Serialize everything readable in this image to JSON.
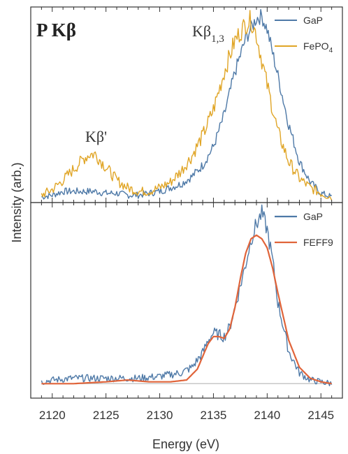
{
  "chart_data": [
    {
      "type": "line",
      "panel": "top",
      "title": "P Kβ",
      "annotations": [
        {
          "label": "Kβ'",
          "x": 2124.0
        },
        {
          "label": "Kβ",
          "subscript": "1,3",
          "x": 2137.5
        }
      ],
      "xlim": [
        2118,
        2147
      ],
      "ylim": [
        0,
        1.05
      ],
      "grid": false,
      "legend_position": "top-right",
      "series": [
        {
          "name": "GaP",
          "color": "#4e79a7",
          "x": [
            2119,
            2120,
            2121,
            2122,
            2123,
            2124,
            2125,
            2126,
            2127,
            2128,
            2129,
            2130,
            2131,
            2132,
            2133,
            2134,
            2135,
            2136,
            2137,
            2138,
            2139,
            2139.5,
            2140,
            2141,
            2142,
            2143,
            2144,
            2145,
            2146
          ],
          "y": [
            0.03,
            0.04,
            0.06,
            0.06,
            0.06,
            0.06,
            0.05,
            0.05,
            0.04,
            0.04,
            0.05,
            0.06,
            0.08,
            0.1,
            0.14,
            0.2,
            0.3,
            0.47,
            0.7,
            0.88,
            0.99,
            1.0,
            0.93,
            0.68,
            0.42,
            0.22,
            0.11,
            0.05,
            0.03
          ]
        },
        {
          "name": "FePO4",
          "color": "#e0a526",
          "x": [
            2119,
            2120,
            2121,
            2122,
            2123,
            2123.5,
            2124,
            2125,
            2126,
            2127,
            2128,
            2129,
            2130,
            2131,
            2132,
            2133,
            2134,
            2135,
            2136,
            2137,
            2138,
            2138.5,
            2139,
            2140,
            2141,
            2142,
            2143,
            2144,
            2145,
            2146
          ],
          "y": [
            0.04,
            0.07,
            0.12,
            0.18,
            0.24,
            0.26,
            0.26,
            0.19,
            0.12,
            0.08,
            0.06,
            0.06,
            0.08,
            0.11,
            0.17,
            0.25,
            0.36,
            0.5,
            0.7,
            0.87,
            0.96,
            0.98,
            0.9,
            0.63,
            0.38,
            0.22,
            0.13,
            0.08,
            0.05,
            0.03
          ]
        }
      ]
    },
    {
      "type": "line",
      "panel": "bottom",
      "xlabel": "Energy (eV)",
      "ylabel": "Intensity (arb.)",
      "xlim": [
        2118,
        2147
      ],
      "ylim": [
        -0.08,
        1.0
      ],
      "xticks": [
        2120,
        2125,
        2130,
        2135,
        2140,
        2145
      ],
      "baseline": 0,
      "grid": false,
      "legend_position": "top-right",
      "series": [
        {
          "name": "GaP",
          "color": "#4e79a7",
          "x": [
            2119,
            2120,
            2122,
            2124,
            2126,
            2128,
            2130,
            2131,
            2132,
            2133,
            2134,
            2134.5,
            2135,
            2135.5,
            2136,
            2136.5,
            2137,
            2138,
            2138.5,
            2139,
            2139.5,
            2140,
            2140.5,
            2141,
            2142,
            2143,
            2144,
            2145,
            2146
          ],
          "y": [
            0.01,
            0.02,
            0.03,
            0.03,
            0.03,
            0.03,
            0.04,
            0.05,
            0.06,
            0.09,
            0.17,
            0.24,
            0.28,
            0.27,
            0.26,
            0.31,
            0.42,
            0.66,
            0.8,
            0.88,
            0.94,
            0.85,
            0.68,
            0.45,
            0.18,
            0.06,
            0.02,
            0.01,
            0.0
          ]
        },
        {
          "name": "FEFF9",
          "color": "#e0643a",
          "x": [
            2119,
            2122,
            2125,
            2127,
            2129,
            2131,
            2132.5,
            2133.5,
            2134,
            2134.5,
            2135,
            2135.5,
            2136,
            2136.5,
            2137,
            2137.5,
            2138,
            2138.5,
            2139,
            2139.5,
            2140,
            2140.5,
            2141,
            2142,
            2143,
            2144,
            2145,
            2146
          ],
          "y": [
            0.0,
            0.0,
            0.01,
            0.02,
            0.01,
            0.01,
            0.02,
            0.08,
            0.15,
            0.22,
            0.26,
            0.26,
            0.25,
            0.3,
            0.42,
            0.58,
            0.72,
            0.8,
            0.82,
            0.8,
            0.75,
            0.64,
            0.5,
            0.24,
            0.09,
            0.03,
            0.01,
            0.0
          ]
        }
      ]
    }
  ]
}
